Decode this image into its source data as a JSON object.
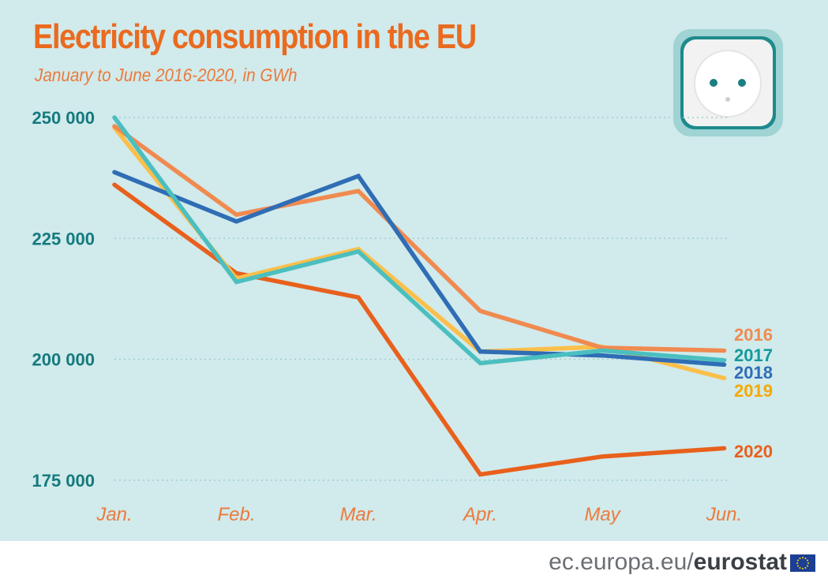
{
  "chart_data": {
    "type": "line",
    "title": "Electricity consumption in the EU",
    "subtitle": "January to June 2016-2020, in GWh",
    "categories": [
      "Jan.",
      "Feb.",
      "Mar.",
      "Apr.",
      "May",
      "Jun."
    ],
    "yticks": [
      250000,
      225000,
      200000,
      175000
    ],
    "ytick_labels": [
      "250 000",
      "225 000",
      "200 000",
      "175 000"
    ],
    "ylim": [
      172000,
      256000
    ],
    "grid": "horizontal dotted",
    "legend": "right, at line ends",
    "series": [
      {
        "name": "2016",
        "color": "#f08a50",
        "values": [
          248200,
          229900,
          234800,
          210000,
          202400,
          201800
        ]
      },
      {
        "name": "2017",
        "color": "#4bbfbf",
        "label_color": "#139a9a",
        "values": [
          250000,
          216000,
          222300,
          199200,
          201800,
          199800
        ]
      },
      {
        "name": "2018",
        "color": "#2f6db5",
        "values": [
          238700,
          228500,
          237900,
          201600,
          200800,
          198900
        ]
      },
      {
        "name": "2019",
        "color": "#fbbf4a",
        "label_color": "#f6a800",
        "values": [
          247900,
          216700,
          222800,
          201600,
          202600,
          196100
        ]
      },
      {
        "name": "2020",
        "color": "#e8601c",
        "values": [
          236100,
          217800,
          212800,
          176200,
          179900,
          181600
        ]
      }
    ]
  },
  "colors": {
    "background": "#d1eaeb",
    "title": "#ea6a1f",
    "axis_labels": "#147a7e",
    "month_labels": "#ec7a3c"
  },
  "icon": "power-socket-icon",
  "footer": {
    "site": "ec.europa.eu/",
    "brand": "eurostat",
    "flag_icon": "eu-flag-icon"
  }
}
